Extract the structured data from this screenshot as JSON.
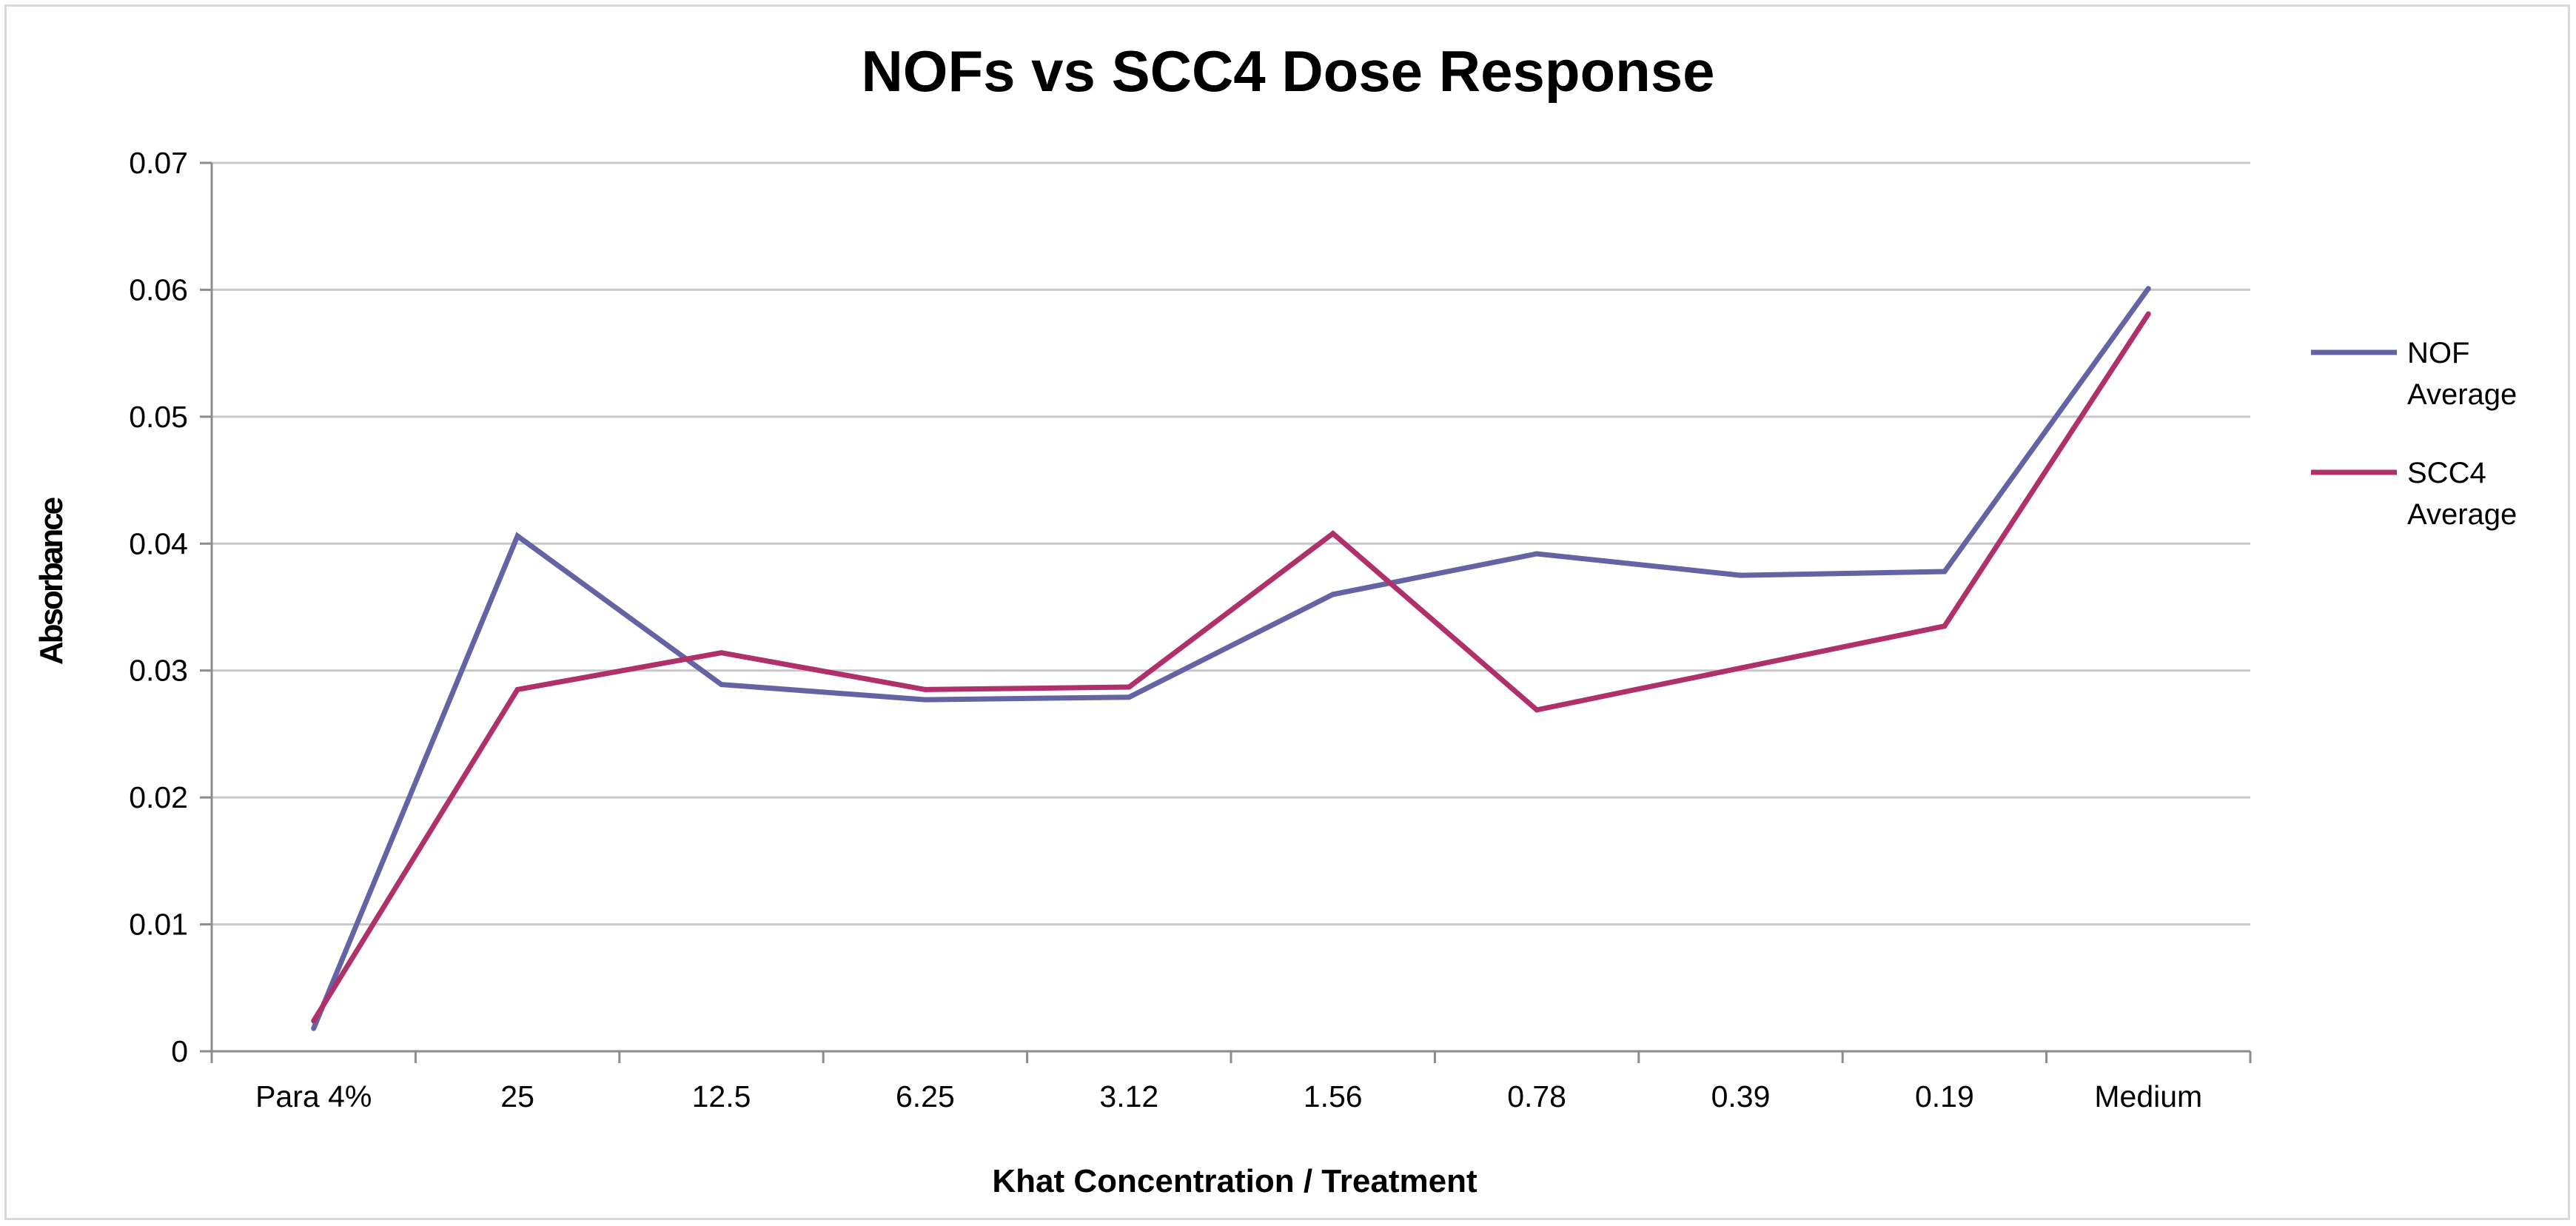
{
  "chart_data": {
    "type": "line",
    "title": "NOFs vs SCC4 Dose Response",
    "xlabel": "Khat Concentration / Treatment",
    "ylabel": "Absorbance",
    "categories": [
      "Para 4%",
      "25",
      "12.5",
      "6.25",
      "3.12",
      "1.56",
      "0.78",
      "0.39",
      "0.19",
      "Medium"
    ],
    "ylim": [
      0,
      0.07
    ],
    "yticks": [
      0,
      0.01,
      0.02,
      0.03,
      0.04,
      0.05,
      0.06,
      0.07
    ],
    "ytick_labels": [
      "0",
      "0.01",
      "0.02",
      "0.03",
      "0.04",
      "0.05",
      "0.06",
      "0.07"
    ],
    "grid": true,
    "legend_position": "right",
    "series": [
      {
        "name": "NOF Average",
        "legend_lines": [
          "NOF",
          "Average"
        ],
        "color": "#6464a4",
        "values": [
          0.0018,
          0.0406,
          0.0289,
          0.0277,
          0.0279,
          0.036,
          0.0392,
          0.0375,
          0.0378,
          0.0601
        ]
      },
      {
        "name": "SCC4 Average",
        "legend_lines": [
          "SCC4",
          "Average"
        ],
        "color": "#b0306a",
        "values": [
          0.0024,
          0.0285,
          0.0314,
          0.0285,
          0.0287,
          0.0408,
          0.0269,
          0.0302,
          0.0335,
          0.0581
        ]
      }
    ]
  }
}
